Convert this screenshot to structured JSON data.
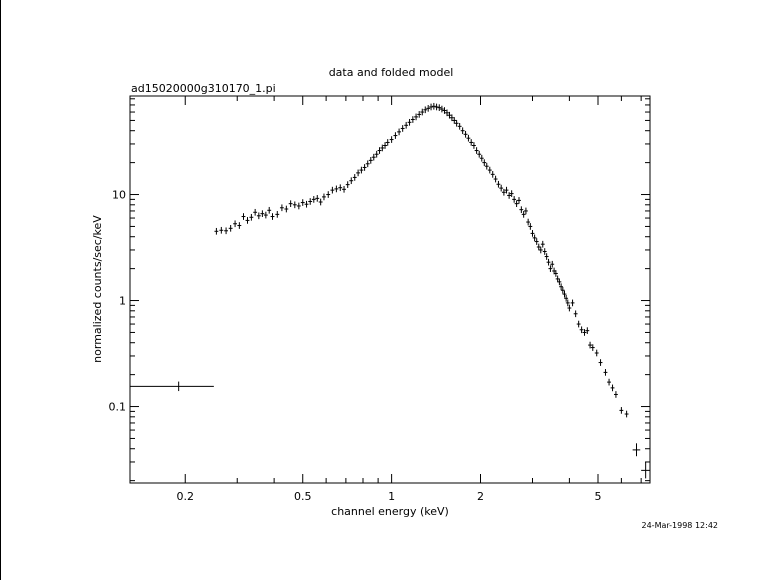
{
  "chart_data": {
    "type": "scatter",
    "title": "data and folded model",
    "subtitle": "ad15020000g310170_1.pi",
    "xlabel": "channel energy (keV)",
    "ylabel": "normalized counts/sec/keV",
    "timestamp": "24-Mar-1998 12:42",
    "x_scale": "log",
    "y_scale": "log",
    "xlim": [
      0.13,
      7.5
    ],
    "ylim": [
      0.019,
      85
    ],
    "x_tick_labels": [
      {
        "value": 0.2,
        "label": "0.2"
      },
      {
        "value": 0.5,
        "label": "0.5"
      },
      {
        "value": 1,
        "label": "1"
      },
      {
        "value": 2,
        "label": "2"
      },
      {
        "value": 5,
        "label": "5"
      }
    ],
    "y_tick_labels": [
      {
        "value": 0.1,
        "label": "0.1"
      },
      {
        "value": 1,
        "label": "1"
      },
      {
        "value": 10,
        "label": "10"
      }
    ],
    "grid": false,
    "legend": "none",
    "color": "#000000",
    "series": [
      {
        "points": [
          {
            "x": 0.19,
            "y": 0.155,
            "xlo": 0.13,
            "xhi": 0.25,
            "ylo": 0.14,
            "yhi": 0.172
          },
          {
            "x": 0.255,
            "y": 4.5
          },
          {
            "x": 0.265,
            "y": 4.6
          },
          {
            "x": 0.275,
            "y": 4.55
          },
          {
            "x": 0.285,
            "y": 4.8
          },
          {
            "x": 0.295,
            "y": 5.3
          },
          {
            "x": 0.305,
            "y": 5.1
          },
          {
            "x": 0.315,
            "y": 6.2
          },
          {
            "x": 0.325,
            "y": 5.7
          },
          {
            "x": 0.335,
            "y": 6.1
          },
          {
            "x": 0.345,
            "y": 6.8
          },
          {
            "x": 0.355,
            "y": 6.3
          },
          {
            "x": 0.365,
            "y": 6.6
          },
          {
            "x": 0.375,
            "y": 6.4
          },
          {
            "x": 0.385,
            "y": 7.1
          },
          {
            "x": 0.395,
            "y": 6.2
          },
          {
            "x": 0.41,
            "y": 6.5
          },
          {
            "x": 0.425,
            "y": 7.5
          },
          {
            "x": 0.44,
            "y": 7.3
          },
          {
            "x": 0.455,
            "y": 8.2
          },
          {
            "x": 0.47,
            "y": 8.0
          },
          {
            "x": 0.485,
            "y": 7.8
          },
          {
            "x": 0.5,
            "y": 8.4
          },
          {
            "x": 0.515,
            "y": 8.1
          },
          {
            "x": 0.53,
            "y": 8.6
          },
          {
            "x": 0.545,
            "y": 9.0
          },
          {
            "x": 0.56,
            "y": 9.2
          },
          {
            "x": 0.575,
            "y": 8.5
          },
          {
            "x": 0.59,
            "y": 9.5
          },
          {
            "x": 0.61,
            "y": 10.0
          },
          {
            "x": 0.63,
            "y": 11.0
          },
          {
            "x": 0.65,
            "y": 11.3
          },
          {
            "x": 0.67,
            "y": 11.6
          },
          {
            "x": 0.69,
            "y": 11.2
          },
          {
            "x": 0.71,
            "y": 12.4
          },
          {
            "x": 0.73,
            "y": 13.5
          },
          {
            "x": 0.75,
            "y": 14.5
          },
          {
            "x": 0.77,
            "y": 16.0
          },
          {
            "x": 0.79,
            "y": 17.0
          },
          {
            "x": 0.81,
            "y": 18.0
          },
          {
            "x": 0.83,
            "y": 19.5
          },
          {
            "x": 0.85,
            "y": 21.0
          },
          {
            "x": 0.87,
            "y": 22.5
          },
          {
            "x": 0.89,
            "y": 24.0
          },
          {
            "x": 0.91,
            "y": 26.0
          },
          {
            "x": 0.93,
            "y": 27.5
          },
          {
            "x": 0.95,
            "y": 29.0
          },
          {
            "x": 0.97,
            "y": 31.0
          },
          {
            "x": 1.0,
            "y": 33.0
          },
          {
            "x": 1.03,
            "y": 36.0
          },
          {
            "x": 1.06,
            "y": 39.0
          },
          {
            "x": 1.09,
            "y": 42.0
          },
          {
            "x": 1.12,
            "y": 45.0
          },
          {
            "x": 1.15,
            "y": 48.0
          },
          {
            "x": 1.18,
            "y": 51.0
          },
          {
            "x": 1.21,
            "y": 54.0
          },
          {
            "x": 1.24,
            "y": 57.0
          },
          {
            "x": 1.27,
            "y": 60.0
          },
          {
            "x": 1.3,
            "y": 63.0
          },
          {
            "x": 1.33,
            "y": 65.0
          },
          {
            "x": 1.36,
            "y": 67.0
          },
          {
            "x": 1.39,
            "y": 68.0
          },
          {
            "x": 1.42,
            "y": 67.0
          },
          {
            "x": 1.45,
            "y": 66.0
          },
          {
            "x": 1.48,
            "y": 64.0
          },
          {
            "x": 1.51,
            "y": 62.0
          },
          {
            "x": 1.54,
            "y": 59.0
          },
          {
            "x": 1.57,
            "y": 56.0
          },
          {
            "x": 1.6,
            "y": 53.0
          },
          {
            "x": 1.63,
            "y": 50.0
          },
          {
            "x": 1.66,
            "y": 47.0
          },
          {
            "x": 1.7,
            "y": 44.0
          },
          {
            "x": 1.74,
            "y": 40.0
          },
          {
            "x": 1.78,
            "y": 37.0
          },
          {
            "x": 1.82,
            "y": 34.0
          },
          {
            "x": 1.86,
            "y": 31.0
          },
          {
            "x": 1.9,
            "y": 29.0
          },
          {
            "x": 1.94,
            "y": 26.0
          },
          {
            "x": 1.98,
            "y": 24.0
          },
          {
            "x": 2.02,
            "y": 22.0
          },
          {
            "x": 2.06,
            "y": 20.0
          },
          {
            "x": 2.1,
            "y": 18.5
          },
          {
            "x": 2.15,
            "y": 17.0
          },
          {
            "x": 2.2,
            "y": 15.5
          },
          {
            "x": 2.25,
            "y": 14.0
          },
          {
            "x": 2.3,
            "y": 12.5
          },
          {
            "x": 2.35,
            "y": 11.5
          },
          {
            "x": 2.4,
            "y": 10.5
          },
          {
            "x": 2.45,
            "y": 11.0
          },
          {
            "x": 2.5,
            "y": 9.8
          },
          {
            "x": 2.55,
            "y": 10.2
          },
          {
            "x": 2.6,
            "y": 9.0
          },
          {
            "x": 2.65,
            "y": 8.2
          },
          {
            "x": 2.7,
            "y": 8.8
          },
          {
            "x": 2.75,
            "y": 7.2
          },
          {
            "x": 2.8,
            "y": 6.5
          },
          {
            "x": 2.85,
            "y": 7.0
          },
          {
            "x": 2.9,
            "y": 5.5
          },
          {
            "x": 2.95,
            "y": 5.0
          },
          {
            "x": 3.0,
            "y": 4.3
          },
          {
            "x": 3.05,
            "y": 3.9
          },
          {
            "x": 3.1,
            "y": 3.6
          },
          {
            "x": 3.15,
            "y": 3.2
          },
          {
            "x": 3.2,
            "y": 3.0
          },
          {
            "x": 3.25,
            "y": 3.4
          },
          {
            "x": 3.3,
            "y": 2.9
          },
          {
            "x": 3.35,
            "y": 2.6
          },
          {
            "x": 3.4,
            "y": 2.3
          },
          {
            "x": 3.45,
            "y": 2.0
          },
          {
            "x": 3.5,
            "y": 2.2
          },
          {
            "x": 3.55,
            "y": 1.9
          },
          {
            "x": 3.6,
            "y": 1.8
          },
          {
            "x": 3.65,
            "y": 1.6
          },
          {
            "x": 3.7,
            "y": 1.5
          },
          {
            "x": 3.75,
            "y": 1.35
          },
          {
            "x": 3.8,
            "y": 1.25
          },
          {
            "x": 3.85,
            "y": 1.15
          },
          {
            "x": 3.9,
            "y": 1.05
          },
          {
            "x": 3.95,
            "y": 0.95
          },
          {
            "x": 4.0,
            "y": 0.85
          },
          {
            "x": 4.1,
            "y": 0.95
          },
          {
            "x": 4.2,
            "y": 0.75
          },
          {
            "x": 4.3,
            "y": 0.6
          },
          {
            "x": 4.4,
            "y": 0.53
          },
          {
            "x": 4.5,
            "y": 0.5
          },
          {
            "x": 4.6,
            "y": 0.52
          },
          {
            "x": 4.7,
            "y": 0.38
          },
          {
            "x": 4.8,
            "y": 0.36
          },
          {
            "x": 4.95,
            "y": 0.32
          },
          {
            "x": 5.1,
            "y": 0.26
          },
          {
            "x": 5.3,
            "y": 0.21
          },
          {
            "x": 5.45,
            "y": 0.17
          },
          {
            "x": 5.6,
            "y": 0.15
          },
          {
            "x": 5.75,
            "y": 0.13
          },
          {
            "x": 6.0,
            "y": 0.092
          },
          {
            "x": 6.25,
            "y": 0.085
          },
          {
            "x": 6.75,
            "y": 0.039,
            "xlo": 6.55,
            "xhi": 6.95,
            "ylo": 0.034,
            "yhi": 0.045
          },
          {
            "x": 7.25,
            "y": 0.025,
            "xlo": 7.0,
            "xhi": 7.5,
            "ylo": 0.021,
            "yhi": 0.03
          }
        ]
      }
    ]
  }
}
